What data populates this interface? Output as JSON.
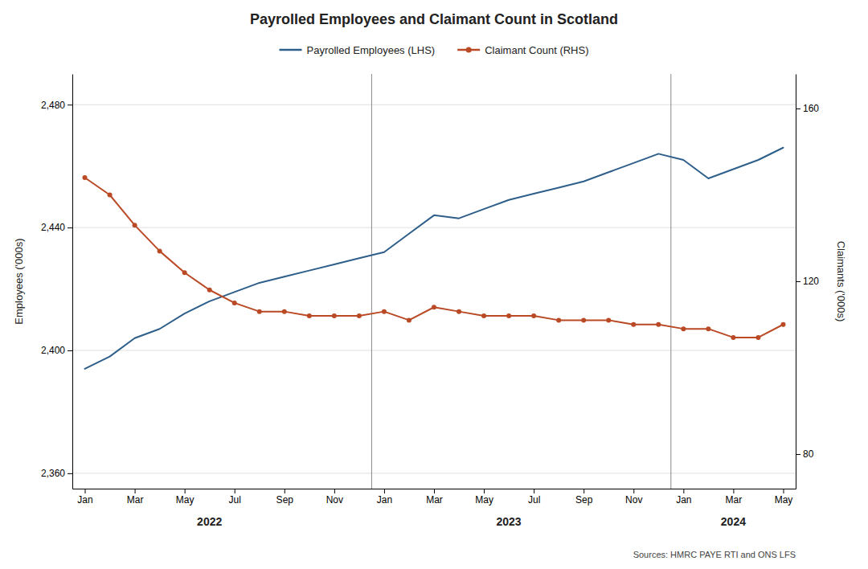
{
  "chart_data": {
    "type": "line",
    "title": "Payrolled Employees and Claimant Count in Scotland",
    "categories": [
      "Jan",
      null,
      "Mar",
      null,
      "May",
      null,
      "Jul",
      null,
      "Sep",
      null,
      "Nov",
      null,
      "Jan",
      null,
      "Mar",
      null,
      "May",
      null,
      "Jul",
      null,
      "Sep",
      null,
      "Nov",
      null,
      "Jan",
      null,
      "Mar",
      null,
      "May"
    ],
    "series": [
      {
        "name": "Payrolled Employees (LHS)",
        "color": "#2e5f8a",
        "values": [
          2394,
          2398,
          2404,
          2407,
          2412,
          2416,
          2419,
          2422,
          2424,
          2426,
          2428,
          2430,
          2432,
          2438,
          2444,
          2443,
          2446,
          2449,
          2451,
          2453,
          2455,
          2458,
          2461,
          2464,
          2462,
          2456,
          2459,
          2462,
          2466
        ]
      },
      {
        "name": "Claimant Count (RHS)",
        "color": "#b94a25",
        "axis": "y2",
        "marker": "circle",
        "values": [
          144,
          140,
          133,
          127,
          122,
          118,
          115,
          113,
          113,
          112,
          112,
          112,
          113,
          111,
          114,
          113,
          112,
          112,
          112,
          111,
          111,
          111,
          110,
          110,
          109,
          109,
          107,
          107,
          110
        ]
      }
    ],
    "ylabel": "Employees ('000s)",
    "y2label": "Claimants ('000s)",
    "ylim": [
      2355,
      2490
    ],
    "yticks": [
      {
        "value": 2360,
        "label": "2,360"
      },
      {
        "value": 2400,
        "label": "2,400"
      },
      {
        "value": 2440,
        "label": "2,440"
      },
      {
        "value": 2480,
        "label": "2,480"
      }
    ],
    "y2lim": [
      72,
      168
    ],
    "y2ticks": [
      80,
      120,
      160
    ],
    "vlines": [
      11.5,
      23.5
    ],
    "annotations": [
      {
        "text": "2022",
        "x": 5
      },
      {
        "text": "2023",
        "x": 17
      },
      {
        "text": "2024",
        "x": 26
      },
      {
        "text": "Sources: HMRC PAYE RTI and ONS LFS"
      }
    ],
    "grid": true,
    "legend": "top"
  }
}
